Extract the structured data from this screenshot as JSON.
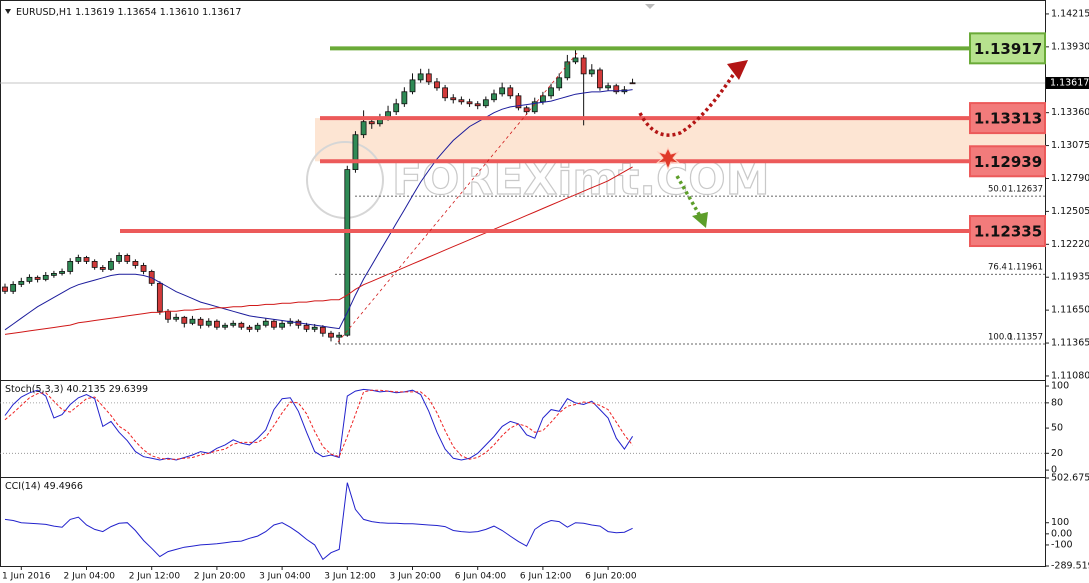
{
  "chart_data": [
    {
      "type": "candlestick",
      "title": "EURUSD,H1",
      "header_values": [
        1.13619,
        1.13654,
        {
          "value": 1.1361,
          "label": "1.13610"
        },
        1.13617
      ],
      "categories": [
        null,
        null,
        "1 Jun 2016",
        null,
        null,
        null,
        null,
        null,
        null,
        null,
        "2 Jun 04:00",
        null,
        null,
        null,
        null,
        null,
        null,
        null,
        "2 Jun 12:00",
        null,
        null,
        null,
        null,
        null,
        null,
        null,
        "2 Jun 20:00",
        null,
        null,
        null,
        null,
        null,
        null,
        null,
        "3 Jun 04:00",
        null,
        null,
        null,
        null,
        null,
        null,
        null,
        "3 Jun 12:00",
        null,
        null,
        null,
        null,
        null,
        null,
        null,
        "3 Jun 20:00",
        null,
        null,
        null,
        null,
        null,
        null,
        null,
        "6 Jun 04:00",
        null,
        null,
        null,
        null,
        null,
        null,
        null,
        "6 Jun 12:00",
        null,
        null,
        null,
        null,
        null,
        null,
        null,
        "6 Jun 20:00",
        null,
        null,
        null
      ],
      "open": [
        1.1185,
        1.11813,
        1.11873,
        1.11899,
        1.11934,
        1.11916,
        1.11951,
        1.11968,
        1.11985,
        1.12072,
        1.12106,
        1.12072,
        1.1202,
        1.12003,
        1.12072,
        1.12124,
        1.12072,
        1.12037,
        1.11985,
        1.11882,
        1.1164,
        1.11571,
        1.11588,
        1.11536,
        1.11571,
        1.11519,
        1.11554,
        1.11502,
        1.11519,
        1.11536,
        1.11502,
        1.11484,
        1.11519,
        1.11554,
        1.11502,
        1.11536,
        1.11554,
        1.11519,
        1.11484,
        1.11502,
        1.1145,
        1.11416,
        1.11433,
        1.12867,
        1.13169,
        1.13282,
        1.13264,
        1.13316,
        1.13368,
        1.13437,
        1.13541,
        1.13644,
        1.13696,
        1.13627,
        1.13575,
        1.13489,
        1.13472,
        1.13454,
        1.13437,
        1.1342,
        1.13472,
        1.13523,
        1.13575,
        1.13506,
        1.13402,
        1.13368,
        1.13454,
        1.13506,
        1.13575,
        1.13662,
        1.138,
        1.13834,
        1.13696,
        1.1373,
        1.13575,
        1.13593,
        1.13541,
        1.13619
      ],
      "high": [
        1.1188,
        1.119,
        1.1193,
        1.1196,
        1.1195,
        1.1198,
        1.1199,
        1.1201,
        1.121,
        1.1213,
        1.1212,
        1.1209,
        1.1204,
        1.121,
        1.1215,
        1.1214,
        1.1209,
        1.1206,
        1.12,
        1.119,
        1.1166,
        1.1162,
        1.116,
        1.116,
        1.1159,
        1.1158,
        1.1157,
        1.1154,
        1.1156,
        1.1155,
        1.1152,
        1.1154,
        1.1158,
        1.1157,
        1.1156,
        1.1158,
        1.1157,
        1.1154,
        1.1153,
        1.1152,
        1.1147,
        1.1146,
        1.129,
        1.132,
        1.1338,
        1.1332,
        1.1335,
        1.1342,
        1.1348,
        1.1358,
        1.137,
        1.1374,
        1.1374,
        1.1366,
        1.136,
        1.1352,
        1.135,
        1.1348,
        1.1346,
        1.135,
        1.1356,
        1.1362,
        1.136,
        1.1353,
        1.1342,
        1.1349,
        1.1354,
        1.1361,
        1.137,
        1.1386,
        1.13917,
        1.1386,
        1.1378,
        1.1375,
        1.1362,
        1.1361,
        1.1359,
        1.13654
      ],
      "low": [
        1.1179,
        1.1179,
        1.1185,
        1.1188,
        1.1189,
        1.119,
        1.1193,
        1.1195,
        1.1196,
        1.1205,
        1.1205,
        1.12,
        1.1198,
        1.1199,
        1.1205,
        1.1205,
        1.1201,
        1.1196,
        1.1186,
        1.1161,
        1.1154,
        1.1155,
        1.115,
        1.1152,
        1.1149,
        1.115,
        1.1148,
        1.1148,
        1.115,
        1.1148,
        1.1146,
        1.1146,
        1.115,
        1.1148,
        1.1148,
        1.1151,
        1.1149,
        1.1146,
        1.1146,
        1.1142,
        1.1138,
        1.11357,
        1.1142,
        1.1284,
        1.1314,
        1.1322,
        1.1324,
        1.1329,
        1.1334,
        1.1341,
        1.1352,
        1.1362,
        1.136,
        1.1355,
        1.1346,
        1.1344,
        1.1343,
        1.1341,
        1.1339,
        1.134,
        1.1345,
        1.135,
        1.1348,
        1.1338,
        1.1334,
        1.1335,
        1.1343,
        1.1348,
        1.1355,
        1.1364,
        1.1378,
        1.1325,
        1.1367,
        1.1355,
        1.1355,
        1.1352,
        1.1352,
        1.1361
      ],
      "close": [
        1.11813,
        1.11873,
        1.11899,
        1.11934,
        1.11916,
        1.11951,
        1.11968,
        1.11985,
        1.12072,
        1.12106,
        1.12072,
        1.1202,
        1.12003,
        1.12072,
        1.12124,
        1.12072,
        1.12037,
        1.11985,
        1.11882,
        1.1164,
        1.11571,
        1.11588,
        1.11536,
        1.11571,
        1.11519,
        1.11554,
        1.11502,
        1.11519,
        1.11536,
        1.11502,
        1.11484,
        1.11519,
        1.11554,
        1.11502,
        1.11536,
        1.11554,
        1.11519,
        1.11484,
        1.11502,
        1.1145,
        1.11416,
        1.11433,
        1.12867,
        1.13169,
        1.13282,
        1.13264,
        1.13316,
        1.13368,
        1.13437,
        1.13541,
        1.13644,
        1.13696,
        1.13627,
        1.13575,
        1.13489,
        1.13472,
        1.13454,
        1.13437,
        1.1342,
        1.13472,
        1.13523,
        1.13575,
        1.13506,
        1.13402,
        1.13368,
        1.13454,
        1.13506,
        1.13575,
        1.13662,
        1.138,
        1.13834,
        1.13696,
        1.1373,
        1.13575,
        1.13593,
        1.13541,
        1.13558,
        1.13617
      ],
      "up_color": "#2f8a55",
      "down_color": "#d23a3a",
      "overlays": [
        {
          "color": "#1c1c9c",
          "values": [
            1.1148,
            1.1153,
            1.1158,
            1.1163,
            1.1168,
            1.1172,
            1.1176,
            1.118,
            1.1184,
            1.1187,
            1.1189,
            1.1191,
            1.1193,
            1.1195,
            1.1196,
            1.1196,
            1.1196,
            1.1195,
            1.1193,
            1.1189,
            1.1185,
            1.1181,
            1.1178,
            1.1175,
            1.1172,
            1.117,
            1.1168,
            1.1166,
            1.1164,
            1.1162,
            1.116,
            1.1159,
            1.1158,
            1.1157,
            1.1156,
            1.1155,
            1.1154,
            1.1153,
            1.1152,
            1.1151,
            1.115,
            1.1149,
            1.1163,
            1.1178,
            1.1192,
            1.1204,
            1.1216,
            1.1228,
            1.124,
            1.1252,
            1.1264,
            1.1276,
            1.1286,
            1.1296,
            1.1304,
            1.1312,
            1.1318,
            1.1324,
            1.1328,
            1.1332,
            1.1336,
            1.1339,
            1.1341,
            1.1342,
            1.1343,
            1.1344,
            1.1345,
            1.1346,
            1.1348,
            1.135,
            1.1352,
            1.1353,
            1.1354,
            1.1354,
            1.1355,
            1.1355,
            1.1355,
            1.1356
          ]
        },
        {
          "color": "#d01818",
          "values": [
            1.1144,
            1.1145,
            1.1146,
            1.1147,
            1.1148,
            1.1149,
            1.115,
            1.1151,
            1.1152,
            1.1154,
            1.1155,
            1.1156,
            1.1157,
            1.1158,
            1.1159,
            1.116,
            1.1161,
            1.1162,
            1.1163,
            1.1163,
            1.1164,
            1.1164,
            1.1165,
            1.1165,
            1.1166,
            1.1166,
            1.1167,
            1.1167,
            1.1168,
            1.1168,
            1.1169,
            1.1169,
            1.117,
            1.117,
            1.1171,
            1.1171,
            1.1172,
            1.1172,
            1.1173,
            1.1173,
            1.1174,
            1.1174,
            1.1178,
            1.1183,
            1.1187,
            1.119,
            1.1193,
            1.1196,
            1.1199,
            1.1202,
            1.1205,
            1.1208,
            1.1211,
            1.1214,
            1.1217,
            1.122,
            1.1223,
            1.1226,
            1.1229,
            1.1232,
            1.1235,
            1.1238,
            1.1241,
            1.1244,
            1.1247,
            1.125,
            1.1253,
            1.1256,
            1.1259,
            1.1262,
            1.1265,
            1.1268,
            1.1271,
            1.1274,
            1.1277,
            1.1281,
            1.1285,
            1.1289
          ]
        }
      ],
      "levels": [
        {
          "value": 1.13917,
          "color": "#6aaa38",
          "label_fill": "#b7e28e"
        },
        {
          "value": 1.13313,
          "color": "#ec5a5a",
          "label_fill": "#f27b7b"
        },
        {
          "value": 1.12939,
          "color": "#ec5a5a",
          "label_fill": "#f27b7b"
        },
        {
          "value": 1.12335,
          "color": "#ec5a5a",
          "label_fill": "#f27b7b"
        }
      ],
      "zone_color": "#fde5d3",
      "fib_levels": [
        {
          "ratio": {
            "value": 50,
            "label": "50.0"
          },
          "price": 1.12637
        },
        {
          "ratio": 76.4,
          "price": 1.11961
        },
        {
          "ratio": {
            "value": 100,
            "label": "100.0"
          },
          "price": 1.11357
        }
      ],
      "last_price": 1.13617,
      "watermark": "FOREXimt.COM",
      "ylim": [
        1.11045,
        1.14301
      ],
      "yticks": [
        1.14215,
        {
          "value": 1.1393,
          "label": "1.13930"
        },
        {
          "value": 1.1336,
          "label": "1.13360"
        },
        1.13075,
        {
          "value": 1.1279,
          "label": "1.12790"
        },
        1.12505,
        {
          "value": 1.1222,
          "label": "1.12220"
        },
        1.11935,
        {
          "value": 1.1165,
          "label": "1.11650"
        },
        1.11365,
        {
          "value": 1.1108,
          "label": "1.11080"
        }
      ]
    },
    {
      "type": "line",
      "title": "Stoch(5,3,3)",
      "title_values": [
        40.2135,
        29.6399
      ],
      "series": [
        {
          "color": "#2222cc",
          "dashed": false,
          "values": [
            65,
            78,
            87,
            92,
            95,
            88,
            62,
            66,
            78,
            86,
            90,
            85,
            52,
            58,
            45,
            35,
            22,
            16,
            14,
            12,
            14,
            12,
            15,
            18,
            22,
            20,
            26,
            30,
            36,
            32,
            30,
            38,
            48,
            72,
            85,
            86,
            70,
            45,
            22,
            16,
            18,
            15,
            88,
            94,
            96,
            95,
            93,
            94,
            92,
            93,
            95,
            90,
            70,
            45,
            25,
            14,
            12,
            14,
            20,
            30,
            40,
            52,
            58,
            55,
            42,
            38,
            62,
            72,
            70,
            85,
            80,
            78,
            82,
            72,
            62,
            38,
            25,
            40.2135
          ]
        },
        {
          "color": "#ee2222",
          "dashed": true,
          "values": [
            60,
            68,
            77,
            86,
            91,
            92,
            82,
            72,
            69,
            77,
            85,
            87,
            76,
            65,
            52,
            46,
            34,
            24,
            17,
            14,
            13,
            13,
            14,
            15,
            18,
            20,
            23,
            25,
            31,
            33,
            33,
            33,
            39,
            53,
            68,
            81,
            80,
            67,
            46,
            28,
            19,
            16,
            40,
            66,
            93,
            95,
            95,
            94,
            93,
            93,
            93,
            93,
            85,
            68,
            47,
            28,
            17,
            13,
            15,
            21,
            30,
            41,
            50,
            55,
            52,
            45,
            47,
            57,
            68,
            76,
            78,
            81,
            80,
            77,
            72,
            57,
            42,
            29.6399
          ]
        }
      ],
      "levels": [
        80,
        20
      ],
      "ylim": [
        -7,
        106
      ],
      "yticks": [
        100,
        80,
        50,
        20,
        0
      ]
    },
    {
      "type": "line",
      "title": "CCI(14)",
      "title_values": [
        49.4966
      ],
      "series": [
        {
          "color": "#2222cc",
          "dashed": false,
          "values": [
            130,
            120,
            100,
            95,
            90,
            85,
            70,
            60,
            130,
            150,
            80,
            40,
            20,
            65,
            95,
            100,
            30,
            -60,
            -130,
            -205,
            -160,
            -140,
            -120,
            -110,
            -100,
            -95,
            -90,
            -80,
            -70,
            -65,
            -40,
            -20,
            20,
            80,
            100,
            60,
            10,
            -50,
            -100,
            -230,
            -170,
            -140,
            460,
            220,
            130,
            110,
            100,
            95,
            95,
            90,
            90,
            85,
            80,
            75,
            65,
            30,
            20,
            15,
            20,
            40,
            70,
            30,
            -20,
            -70,
            -110,
            40,
            90,
            120,
            110,
            60,
            100,
            95,
            80,
            70,
            20,
            10,
            15,
            49.4966
          ]
        }
      ],
      "levels": [],
      "ylim": [
        -289.519,
        502.6755
      ],
      "yticks": [
        502.6755,
        100,
        {
          "value": 0,
          "label": "0.00"
        },
        -100,
        -289.519
      ]
    }
  ]
}
